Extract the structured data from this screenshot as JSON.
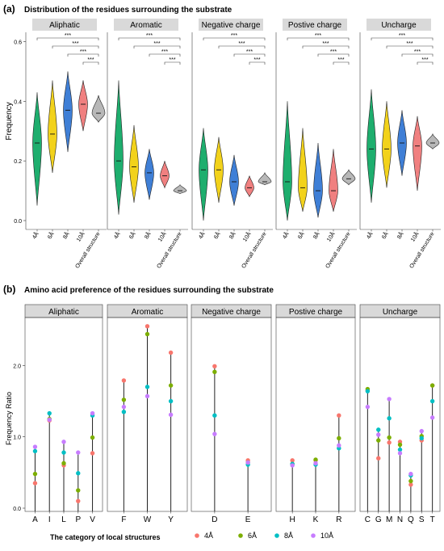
{
  "panels": {
    "a": {
      "letter": "(a)",
      "title": "Distribution of the residues surrounding the substrate"
    },
    "b": {
      "letter": "(b)",
      "title": "Amino acid preference of the residues surrounding the substrate"
    }
  },
  "colors": {
    "4A": "#f8766d",
    "6A": "#7cae00",
    "8A": "#00bfc4",
    "10A": "#c77cff",
    "violin_4A": "#1eae6e",
    "violin_6A": "#f2d21b",
    "violin_8A": "#3f7fd6",
    "violin_10A": "#f08080",
    "violin_overall": "#b8b8b8",
    "strip": "#d9d9d9"
  },
  "chart_data": [
    {
      "type": "violin",
      "ylabel": "Frequency",
      "ylim": [
        0,
        0.65
      ],
      "yticks": [
        "0.0",
        "0.2",
        "0.4",
        "0.6"
      ],
      "categories": [
        "4Å",
        "6Å",
        "8Å",
        "10Å",
        "Overall structure"
      ],
      "significance_label": "***",
      "facets": [
        {
          "name": "Aliphatic",
          "medians": [
            0.26,
            0.29,
            0.37,
            0.39,
            0.36
          ],
          "mins": [
            0.05,
            0.16,
            0.23,
            0.3,
            0.33
          ],
          "maxs": [
            0.43,
            0.47,
            0.5,
            0.47,
            0.42
          ]
        },
        {
          "name": "Aromatic",
          "medians": [
            0.2,
            0.18,
            0.16,
            0.15,
            0.1
          ],
          "mins": [
            0.02,
            0.06,
            0.07,
            0.11,
            0.09
          ],
          "maxs": [
            0.47,
            0.32,
            0.24,
            0.2,
            0.12
          ]
        },
        {
          "name": "Negative charge",
          "medians": [
            0.17,
            0.17,
            0.13,
            0.11,
            0.13
          ],
          "mins": [
            0.0,
            0.06,
            0.05,
            0.08,
            0.12
          ],
          "maxs": [
            0.31,
            0.28,
            0.22,
            0.15,
            0.16
          ]
        },
        {
          "name": "Postive charge",
          "medians": [
            0.13,
            0.11,
            0.1,
            0.1,
            0.14
          ],
          "mins": [
            0.0,
            0.03,
            0.01,
            0.03,
            0.12
          ],
          "maxs": [
            0.4,
            0.31,
            0.26,
            0.24,
            0.17
          ]
        },
        {
          "name": "Uncharge",
          "medians": [
            0.24,
            0.24,
            0.26,
            0.25,
            0.26
          ],
          "mins": [
            0.06,
            0.11,
            0.15,
            0.1,
            0.24
          ],
          "maxs": [
            0.44,
            0.4,
            0.37,
            0.35,
            0.29
          ]
        }
      ]
    },
    {
      "type": "scatter",
      "ylabel": "Frequency Ratio",
      "xlabel": "The category of local structures",
      "ylim": [
        0,
        2.65
      ],
      "yticks": [
        "0.0",
        "1.0",
        "2.0"
      ],
      "legend": {
        "position": "bottom",
        "labels": [
          "4Å",
          "6Å",
          "8Å",
          "10Å"
        ]
      },
      "facets": [
        {
          "name": "Aliphatic",
          "categories": [
            "A",
            "I",
            "L",
            "P",
            "V"
          ],
          "values": {
            "4A": [
              0.35,
              1.23,
              0.6,
              0.1,
              0.77
            ],
            "6A": [
              0.48,
              1.25,
              0.63,
              0.25,
              0.99
            ],
            "8A": [
              0.8,
              1.33,
              0.78,
              0.49,
              1.3
            ],
            "10A": [
              0.86,
              1.24,
              0.93,
              0.78,
              1.33
            ]
          }
        },
        {
          "name": "Aromatic",
          "categories": [
            "F",
            "W",
            "Y"
          ],
          "values": {
            "4A": [
              1.79,
              2.55,
              2.18
            ],
            "6A": [
              1.52,
              2.44,
              1.72
            ],
            "8A": [
              1.35,
              1.7,
              1.5
            ],
            "10A": [
              1.42,
              1.57,
              1.31
            ]
          }
        },
        {
          "name": "Negative charge",
          "categories": [
            "D",
            "E"
          ],
          "values": {
            "4A": [
              1.99,
              0.67
            ],
            "6A": [
              1.91,
              0.64
            ],
            "8A": [
              1.3,
              0.61
            ],
            "10A": [
              1.04,
              0.64
            ]
          }
        },
        {
          "name": "Postive charge",
          "categories": [
            "H",
            "K",
            "R"
          ],
          "values": {
            "4A": [
              0.67,
              0.67,
              1.3
            ],
            "6A": [
              0.62,
              0.68,
              0.98
            ],
            "8A": [
              0.62,
              0.61,
              0.84
            ],
            "10A": [
              0.6,
              0.63,
              0.88
            ]
          }
        },
        {
          "name": "Uncharge",
          "categories": [
            "C",
            "G",
            "M",
            "N",
            "Q",
            "S",
            "T"
          ],
          "values": {
            "4A": [
              1.65,
              0.7,
              0.92,
              0.93,
              0.33,
              0.95,
              1.72
            ],
            "6A": [
              1.67,
              0.95,
              0.99,
              0.89,
              0.38,
              1.01,
              1.72
            ],
            "8A": [
              1.64,
              1.1,
              1.26,
              0.82,
              0.46,
              0.98,
              1.5
            ],
            "10A": [
              1.42,
              1.03,
              1.53,
              0.77,
              0.48,
              1.08,
              1.27
            ]
          }
        }
      ]
    }
  ]
}
